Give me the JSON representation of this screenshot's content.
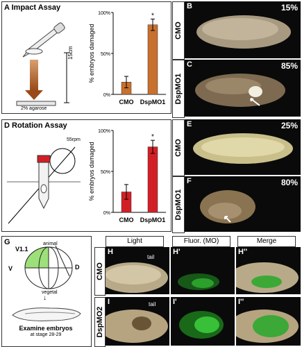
{
  "panels": {
    "A": {
      "letter": "A",
      "title": "Impact Assay",
      "height_label": "15cm",
      "surface_label": "2% agarose"
    },
    "B": {
      "letter": "B",
      "row_label": "CMO",
      "pct": "15%"
    },
    "C": {
      "letter": "C",
      "row_label": "DspMO1",
      "pct": "85%"
    },
    "D": {
      "letter": "D",
      "title": "Rotation Assay",
      "speed_label": "55rpm"
    },
    "E": {
      "letter": "E",
      "row_label": "CMO",
      "pct": "25%"
    },
    "F": {
      "letter": "F",
      "row_label": "DspMO1",
      "pct": "80%"
    },
    "G": {
      "letter": "G",
      "animal": "animal",
      "vegetal": "vegetal",
      "v11": "V1.1",
      "v": "V",
      "d": "D",
      "caption_line1": "Examine embryos",
      "caption_line2": "at stage 28-29"
    },
    "H": {
      "col_light": "Light",
      "col_fluor": "Fluor. (MO)",
      "col_merge": "Merge",
      "row1_label": "CMO",
      "row2_label": "DspMO2",
      "h": "H",
      "h1": "H'",
      "h2": "H''",
      "i": "I",
      "i1": "I'",
      "i2": "I''",
      "tail": "tail"
    }
  },
  "chart_data": [
    {
      "type": "bar",
      "categories": [
        "CMO",
        "DspMO1"
      ],
      "values": [
        15,
        85
      ],
      "errors": [
        7,
        7
      ],
      "ylabel": "% embryos damaged",
      "yticks": [
        "0%",
        "50%",
        "100%"
      ],
      "ylim": [
        0,
        100
      ],
      "significance": [
        "",
        "*"
      ],
      "color": "#c8702e"
    },
    {
      "type": "bar",
      "categories": [
        "CMO",
        "DspMO1"
      ],
      "values": [
        25,
        80
      ],
      "errors": [
        9,
        8
      ],
      "ylabel": "% embryos damaged",
      "yticks": [
        "0%",
        "50%",
        "100%"
      ],
      "ylim": [
        0,
        100
      ],
      "significance": [
        "",
        "*"
      ],
      "color": "#d21f26"
    }
  ]
}
